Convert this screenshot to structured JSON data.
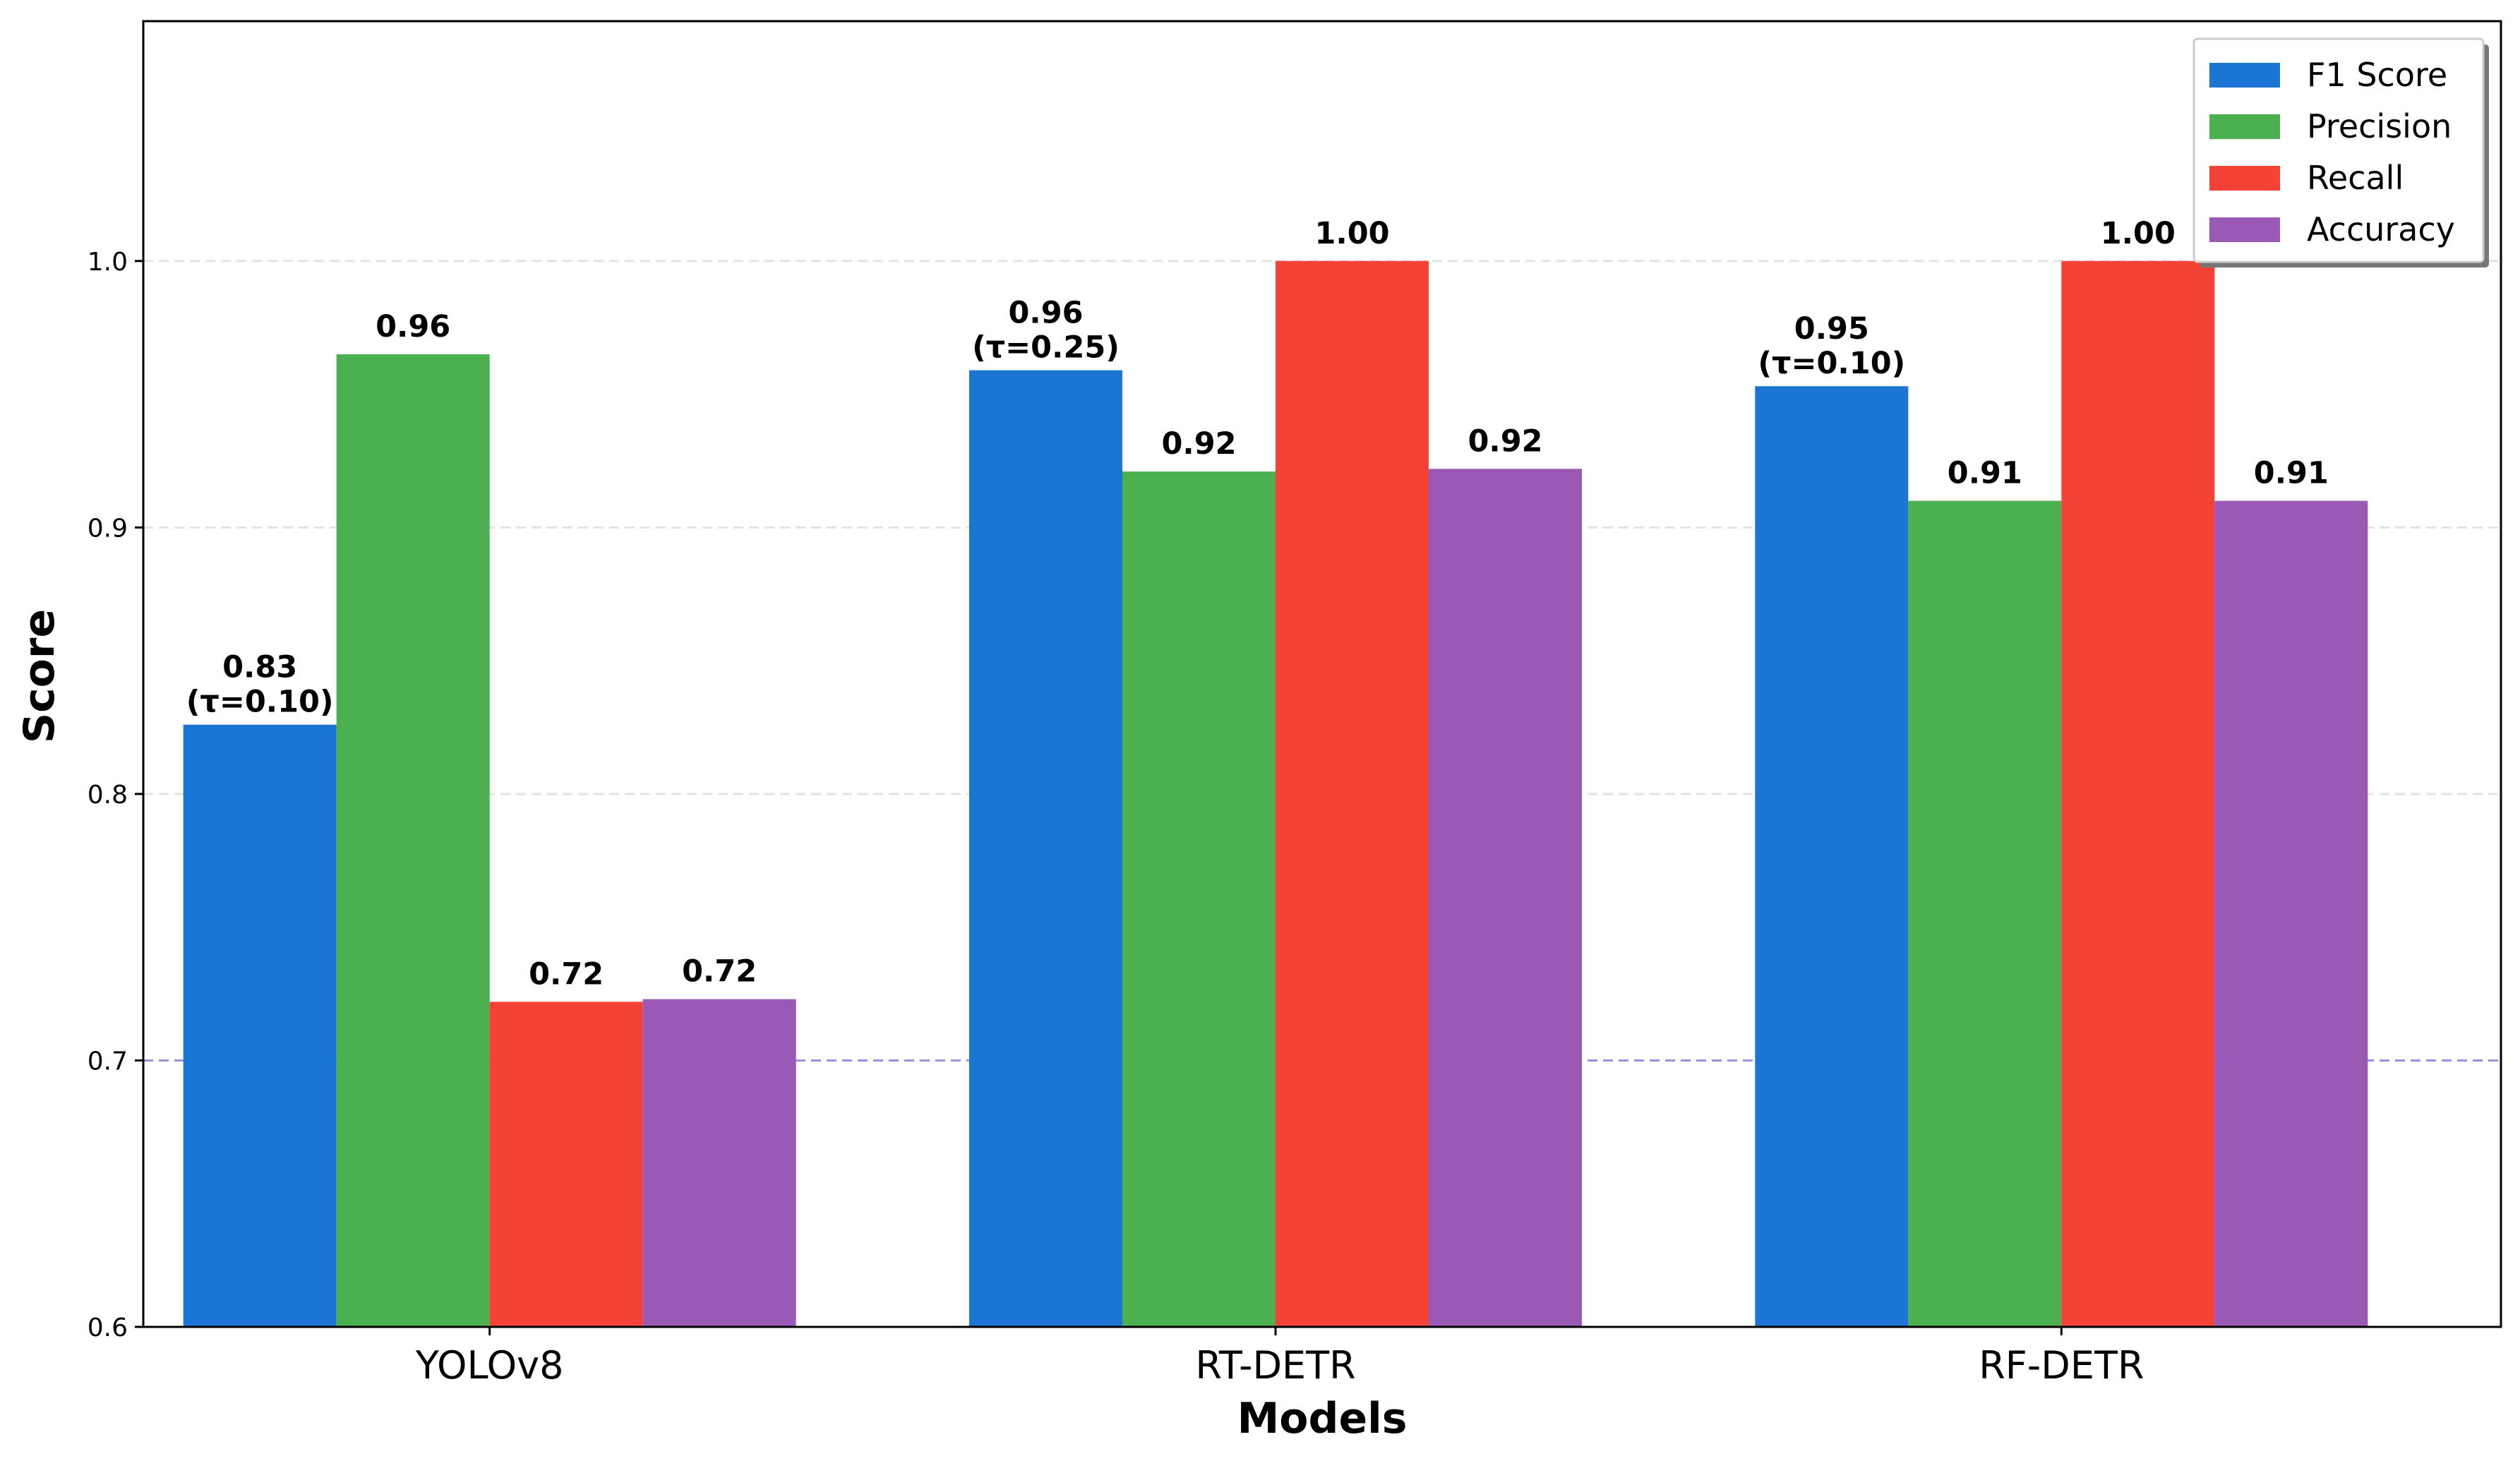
{
  "chart_data": {
    "type": "bar",
    "title": "",
    "xlabel": "Models",
    "ylabel": "Score",
    "categories": [
      "YOLOv8",
      "RT-DETR",
      "RF-DETR"
    ],
    "ylim": [
      0.6,
      1.09
    ],
    "yticks": [
      0.6,
      0.7,
      0.8,
      0.9,
      1.0
    ],
    "ytick_labels": [
      "0.6",
      "0.7",
      "0.8",
      "0.9",
      "1.0"
    ],
    "grid": "y dashed",
    "reference_line": 0.7,
    "legend_position": "top-right",
    "series": [
      {
        "name": "F1 Score",
        "color": "#1a75d4",
        "values": [
          0.826,
          0.959,
          0.953
        ],
        "labels": [
          "0.83",
          "0.96",
          "0.95"
        ],
        "sublabels": [
          "(τ=0.10)",
          "(τ=0.25)",
          "(τ=0.10)"
        ]
      },
      {
        "name": "Precision",
        "color": "#4caf50",
        "values": [
          0.965,
          0.921,
          0.91
        ],
        "labels": [
          "0.96",
          "0.92",
          "0.91"
        ]
      },
      {
        "name": "Recall",
        "color": "#f44336",
        "values": [
          0.722,
          1.0,
          1.0
        ],
        "labels": [
          "0.72",
          "1.00",
          "1.00"
        ]
      },
      {
        "name": "Accuracy",
        "color": "#9b59b6",
        "values": [
          0.723,
          0.922,
          0.91
        ],
        "labels": [
          "0.72",
          "0.92",
          "0.91"
        ]
      }
    ]
  }
}
